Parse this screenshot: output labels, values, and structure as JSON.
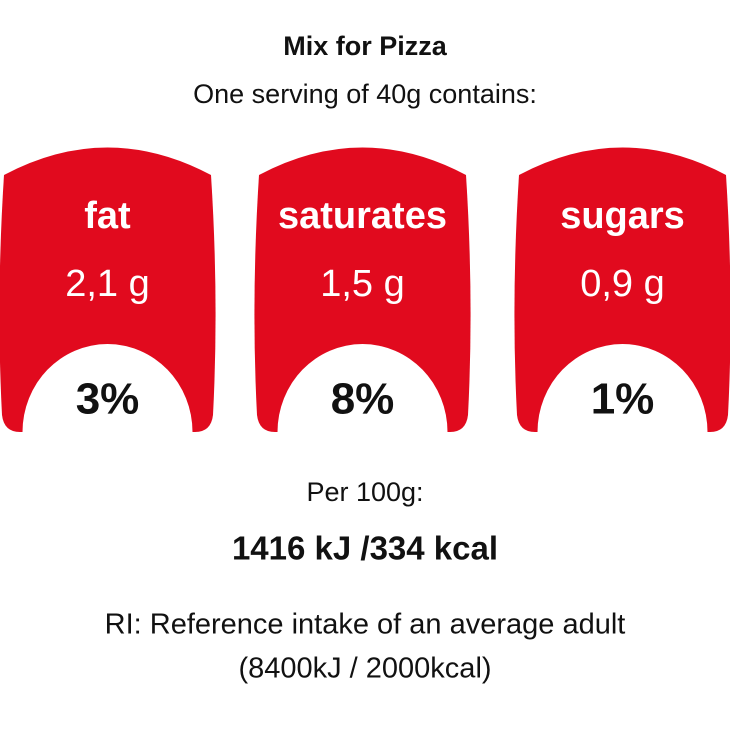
{
  "header": {
    "title": "Mix for Pizza",
    "subtitle": "One serving of 40g contains:"
  },
  "items": [
    {
      "name": "fat",
      "amount": "2,1 g",
      "percent": "3%"
    },
    {
      "name": "saturates",
      "amount": "1,5 g",
      "percent": "8%"
    },
    {
      "name": "sugars",
      "amount": "0,9 g",
      "percent": "1%"
    }
  ],
  "footer": {
    "per": "Per 100g:",
    "energy": "1416 kJ /334 kcal",
    "note": "RI: Reference intake of an average adult",
    "reference": "(8400kJ / 2000kcal)"
  }
}
